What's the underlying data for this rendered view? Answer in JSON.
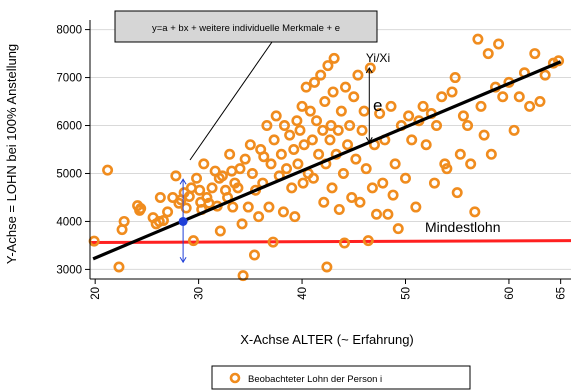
{
  "chart_data": {
    "type": "scatter",
    "title": "",
    "xlabel": "X-Achse ALTER (~ Erfahrung)",
    "ylabel": "Y-Achse = LOHN bei 100% Anstellung",
    "xlim": [
      19.5,
      66
    ],
    "ylim": [
      2800,
      8200
    ],
    "xticks": [
      20,
      30,
      40,
      50,
      60,
      65
    ],
    "yticks": [
      3000,
      4000,
      5000,
      6000,
      7000,
      8000
    ],
    "grid": "horizontal",
    "legend": {
      "placement": "bottom-center",
      "entries": [
        "Beobachteter Lohn der Person i"
      ]
    },
    "annotations": {
      "formula": "y=a + bx + weitere individuelle Merkmale + e",
      "point_label": "Yi/Xi",
      "error_label": "e",
      "min_wage_label": "Mindestlohn"
    },
    "regression_line": {
      "x": [
        19.8,
        65
      ],
      "y": [
        3220,
        7330
      ],
      "color": "#000000"
    },
    "min_wage_line": {
      "x": [
        19.5,
        66
      ],
      "y": [
        3560,
        3600
      ],
      "color": "#ff2020"
    },
    "highlight": {
      "x": 28.5,
      "y": 4000,
      "range": [
        3150,
        4880
      ],
      "color": "#1f3fd8"
    },
    "residual_marker": {
      "x": 46.5,
      "y": [
        5650,
        7200
      ]
    },
    "colors": {
      "points": "#f08c1e",
      "grid": "#d9d9d9",
      "highlight_dot": "#1f3fd8"
    },
    "series": [
      {
        "name": "Beobachteter Lohn der Person i",
        "points": [
          [
            19.9,
            3590
          ],
          [
            21.2,
            5070
          ],
          [
            22.3,
            3050
          ],
          [
            22.6,
            3830
          ],
          [
            22.8,
            4000
          ],
          [
            24.1,
            4330
          ],
          [
            24.3,
            4230
          ],
          [
            24.4,
            4270
          ],
          [
            25.6,
            4080
          ],
          [
            25.9,
            3950
          ],
          [
            26.2,
            4000
          ],
          [
            26.3,
            4500
          ],
          [
            26.6,
            4020
          ],
          [
            27.0,
            4200
          ],
          [
            27.5,
            4500
          ],
          [
            27.8,
            4950
          ],
          [
            28.1,
            4380
          ],
          [
            28.3,
            4450
          ],
          [
            28.6,
            4600
          ],
          [
            28.8,
            4280
          ],
          [
            29.1,
            4520
          ],
          [
            29.3,
            4700
          ],
          [
            29.5,
            3600
          ],
          [
            29.8,
            4900
          ],
          [
            30.1,
            4650
          ],
          [
            30.2,
            4400
          ],
          [
            30.3,
            4250
          ],
          [
            30.5,
            5200
          ],
          [
            30.8,
            4500
          ],
          [
            31.0,
            4380
          ],
          [
            31.3,
            4700
          ],
          [
            31.6,
            5050
          ],
          [
            31.8,
            4320
          ],
          [
            32.0,
            4900
          ],
          [
            32.1,
            3800
          ],
          [
            32.3,
            4950
          ],
          [
            32.6,
            4650
          ],
          [
            32.8,
            4500
          ],
          [
            33.0,
            5400
          ],
          [
            33.2,
            5050
          ],
          [
            33.3,
            4300
          ],
          [
            33.5,
            4800
          ],
          [
            33.8,
            4700
          ],
          [
            34.0,
            5100
          ],
          [
            34.2,
            3950
          ],
          [
            34.3,
            2870
          ],
          [
            34.5,
            5300
          ],
          [
            34.8,
            4300
          ],
          [
            35.0,
            5600
          ],
          [
            35.2,
            5000
          ],
          [
            35.4,
            3300
          ],
          [
            35.5,
            4650
          ],
          [
            35.8,
            4100
          ],
          [
            36.0,
            5500
          ],
          [
            36.2,
            4800
          ],
          [
            36.3,
            5350
          ],
          [
            36.6,
            6000
          ],
          [
            36.8,
            4300
          ],
          [
            37.0,
            5200
          ],
          [
            37.2,
            3570
          ],
          [
            37.3,
            5700
          ],
          [
            37.5,
            6200
          ],
          [
            37.8,
            4950
          ],
          [
            38.0,
            5400
          ],
          [
            38.2,
            4200
          ],
          [
            38.3,
            6000
          ],
          [
            38.5,
            5100
          ],
          [
            38.8,
            5800
          ],
          [
            39.0,
            4700
          ],
          [
            39.2,
            5500
          ],
          [
            39.3,
            4100
          ],
          [
            39.5,
            6100
          ],
          [
            39.6,
            5200
          ],
          [
            39.8,
            5900
          ],
          [
            40.0,
            6400
          ],
          [
            40.1,
            4800
          ],
          [
            40.2,
            5600
          ],
          [
            40.4,
            6800
          ],
          [
            40.6,
            5000
          ],
          [
            40.8,
            6300
          ],
          [
            41.0,
            5700
          ],
          [
            41.1,
            4900
          ],
          [
            41.2,
            6900
          ],
          [
            41.4,
            6100
          ],
          [
            41.6,
            5400
          ],
          [
            41.8,
            7050
          ],
          [
            42.0,
            5900
          ],
          [
            42.1,
            4400
          ],
          [
            42.2,
            6500
          ],
          [
            42.3,
            5200
          ],
          [
            42.4,
            3050
          ],
          [
            42.5,
            7250
          ],
          [
            42.7,
            5700
          ],
          [
            42.8,
            6000
          ],
          [
            42.9,
            4700
          ],
          [
            43.0,
            6700
          ],
          [
            43.1,
            7400
          ],
          [
            43.3,
            5400
          ],
          [
            43.5,
            5900
          ],
          [
            43.6,
            4250
          ],
          [
            43.8,
            6300
          ],
          [
            44.0,
            5000
          ],
          [
            44.1,
            3550
          ],
          [
            44.2,
            6800
          ],
          [
            44.4,
            5600
          ],
          [
            44.6,
            6000
          ],
          [
            44.8,
            4500
          ],
          [
            45.0,
            6600
          ],
          [
            45.2,
            5300
          ],
          [
            45.4,
            7050
          ],
          [
            45.6,
            4400
          ],
          [
            45.8,
            5900
          ],
          [
            46.0,
            6300
          ],
          [
            46.2,
            5100
          ],
          [
            46.4,
            3600
          ],
          [
            46.6,
            7200
          ],
          [
            46.8,
            4700
          ],
          [
            47.0,
            5600
          ],
          [
            47.2,
            4150
          ],
          [
            47.5,
            6250
          ],
          [
            47.8,
            4800
          ],
          [
            48.0,
            5700
          ],
          [
            48.3,
            4150
          ],
          [
            48.6,
            6400
          ],
          [
            48.8,
            4550
          ],
          [
            49.0,
            5200
          ],
          [
            49.3,
            3850
          ],
          [
            49.6,
            6000
          ],
          [
            50.0,
            4900
          ],
          [
            50.3,
            6200
          ],
          [
            50.6,
            5700
          ],
          [
            51.0,
            4300
          ],
          [
            51.3,
            6100
          ],
          [
            51.7,
            6400
          ],
          [
            52.0,
            5600
          ],
          [
            52.5,
            6250
          ],
          [
            52.8,
            4800
          ],
          [
            53.0,
            6000
          ],
          [
            53.5,
            6600
          ],
          [
            53.8,
            5200
          ],
          [
            54.0,
            5100
          ],
          [
            54.5,
            6700
          ],
          [
            54.8,
            7000
          ],
          [
            55.0,
            4600
          ],
          [
            55.3,
            5400
          ],
          [
            55.6,
            6200
          ],
          [
            56.0,
            6000
          ],
          [
            56.3,
            5200
          ],
          [
            56.7,
            4200
          ],
          [
            57.0,
            7800
          ],
          [
            57.3,
            6400
          ],
          [
            57.6,
            5800
          ],
          [
            58.0,
            7500
          ],
          [
            58.3,
            5400
          ],
          [
            58.7,
            6800
          ],
          [
            59.0,
            7700
          ],
          [
            59.4,
            6600
          ],
          [
            60.0,
            6900
          ],
          [
            60.5,
            5900
          ],
          [
            61.0,
            6600
          ],
          [
            61.5,
            7100
          ],
          [
            62.0,
            6400
          ],
          [
            62.5,
            7500
          ],
          [
            63.0,
            6500
          ],
          [
            63.5,
            7050
          ],
          [
            64.3,
            7300
          ],
          [
            64.8,
            7350
          ]
        ]
      }
    ]
  }
}
